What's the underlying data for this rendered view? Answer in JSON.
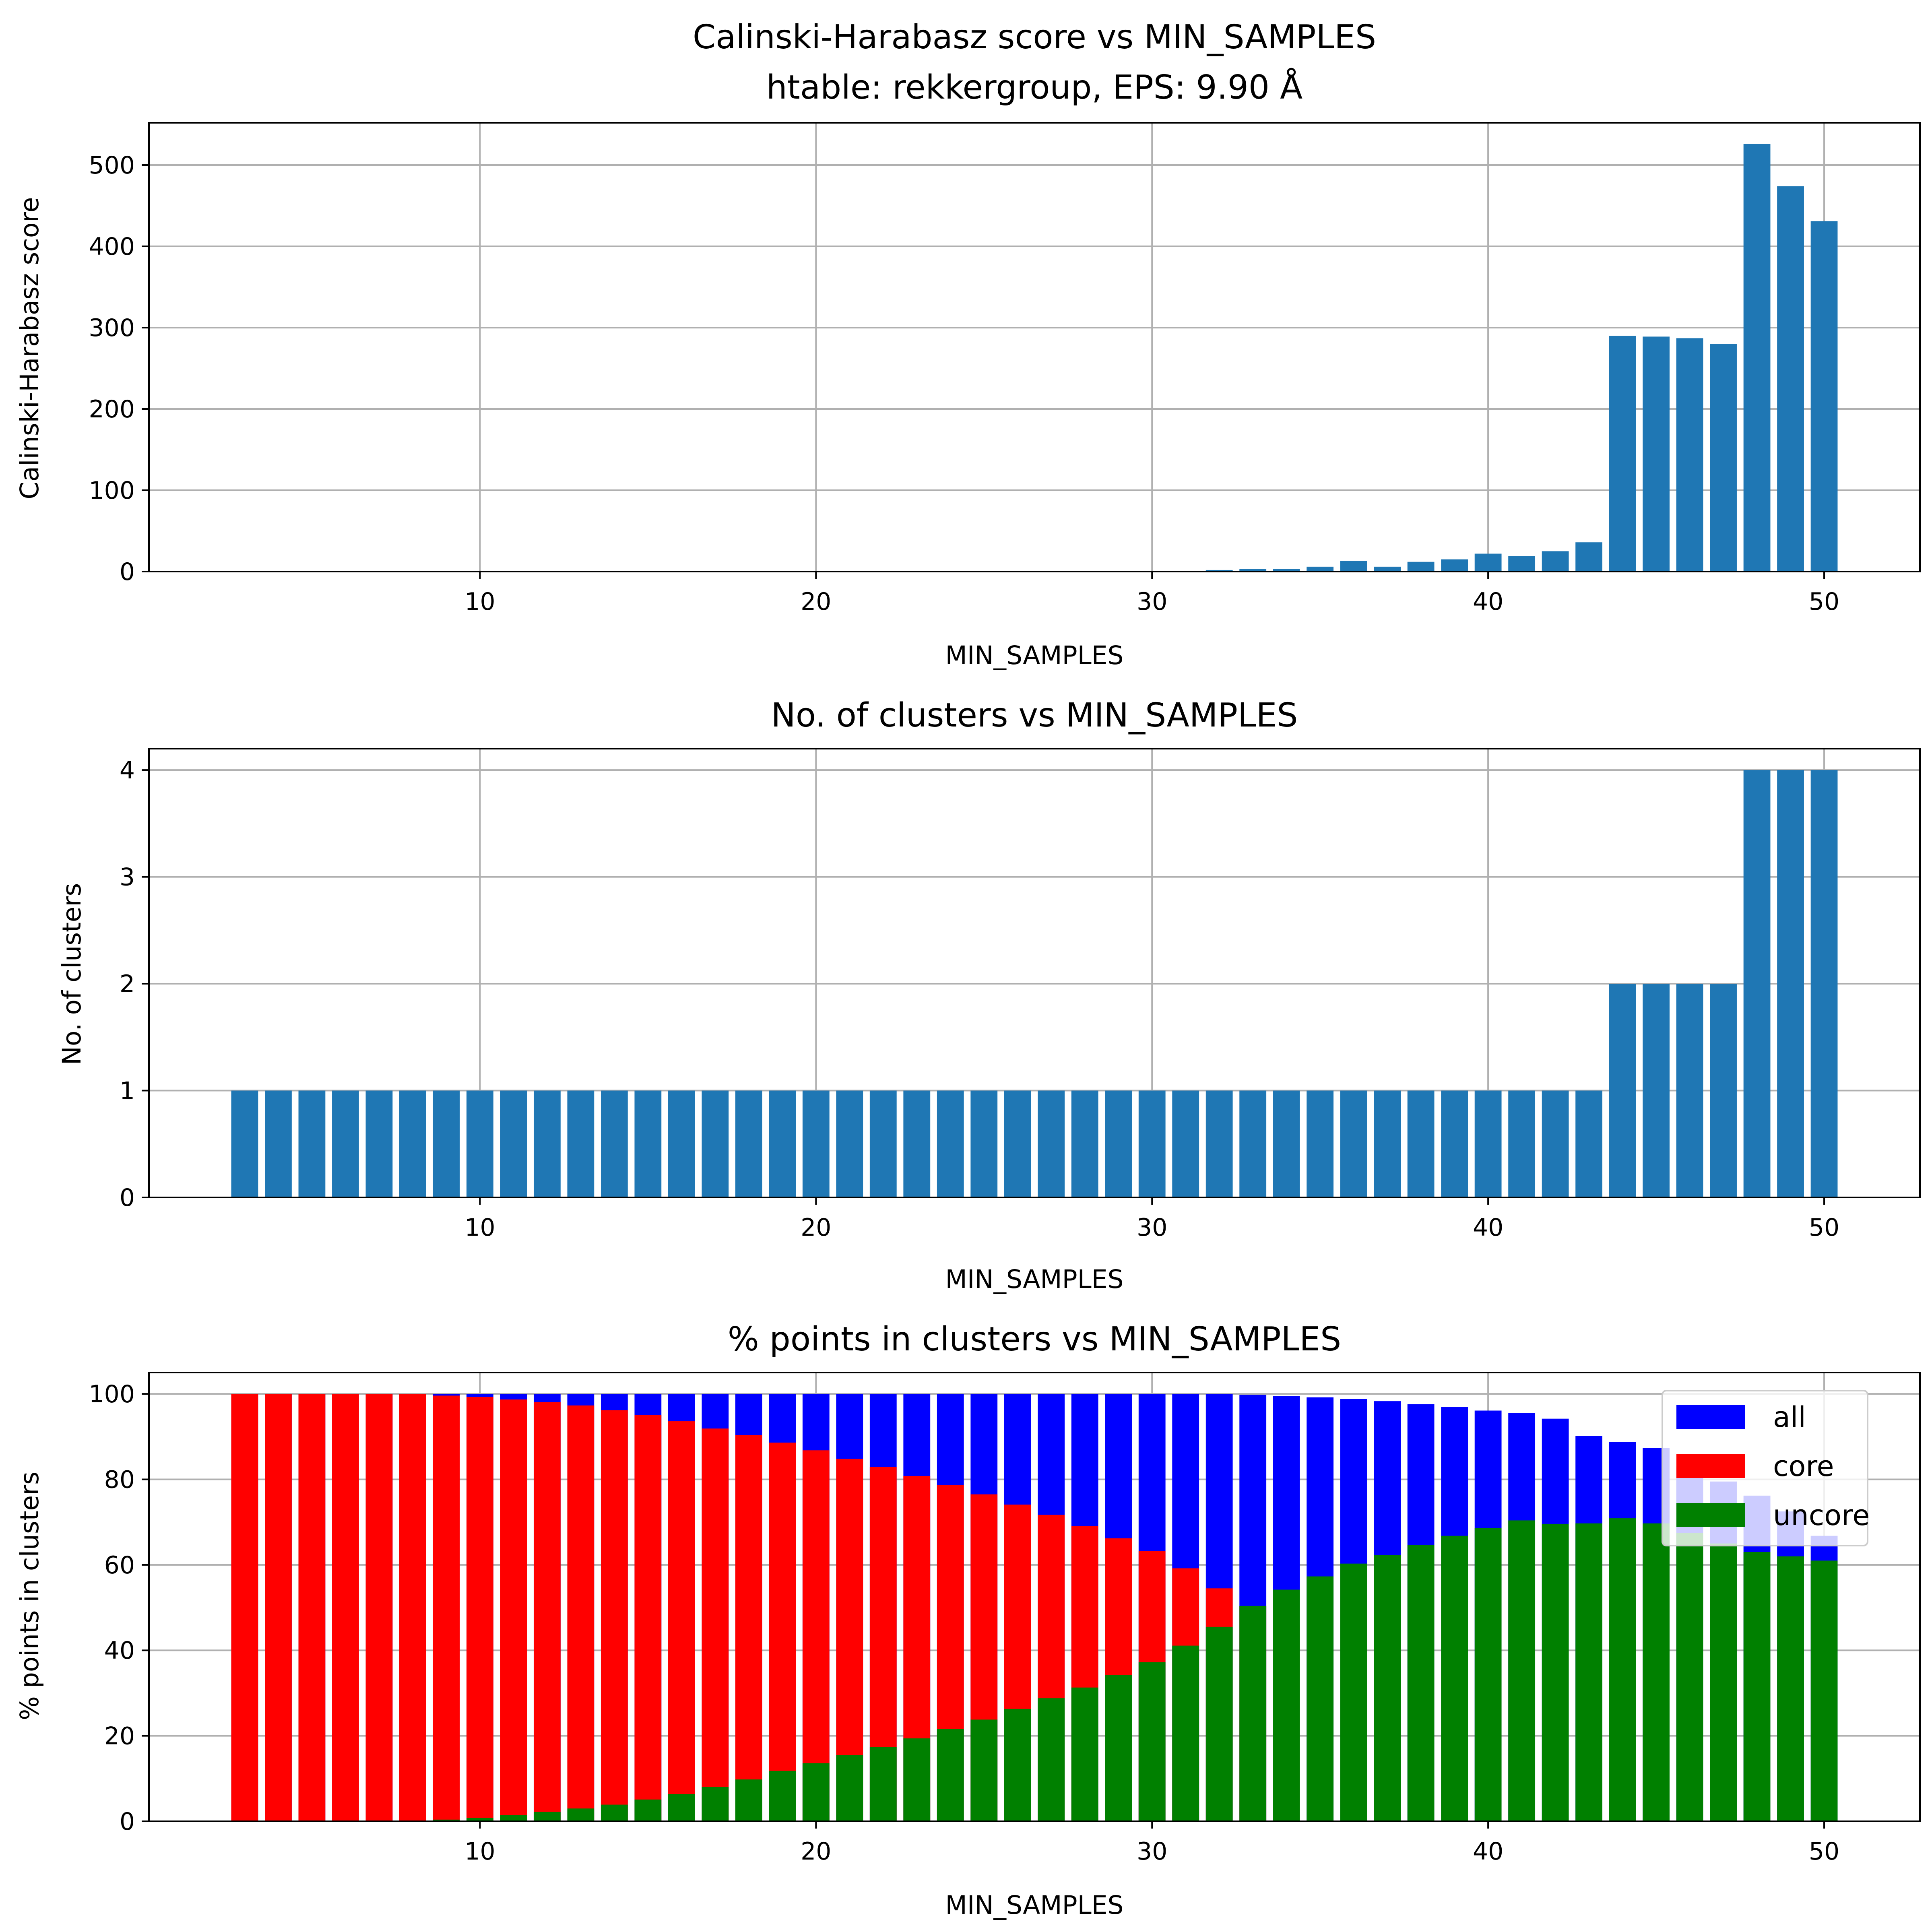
{
  "colors": {
    "bar": "#1f77b4",
    "all": "#0000ff",
    "core": "#ff0000",
    "uncore": "#008000",
    "grid": "#b0b0b0",
    "axis": "#000000"
  },
  "chart_data": [
    {
      "type": "bar",
      "title": "Calinski-Harabasz score vs MIN_SAMPLES",
      "subtitle": "htable: rekkergroup, EPS: 9.90 Å",
      "xlabel": "MIN_SAMPLES",
      "ylabel": "Calinski-Harabasz score",
      "xlim": [
        0.15,
        52.85
      ],
      "ylim": [
        0,
        552
      ],
      "xticks": [
        10,
        20,
        30,
        40,
        50
      ],
      "yticks": [
        0,
        100,
        200,
        300,
        400,
        500
      ],
      "grid": true,
      "x": [
        3,
        4,
        5,
        6,
        7,
        8,
        9,
        10,
        11,
        12,
        13,
        14,
        15,
        16,
        17,
        18,
        19,
        20,
        21,
        22,
        23,
        24,
        25,
        26,
        27,
        28,
        29,
        30,
        31,
        32,
        33,
        34,
        35,
        36,
        37,
        38,
        39,
        40,
        41,
        42,
        43,
        44,
        45,
        46,
        47,
        48,
        49,
        50
      ],
      "values": [
        0,
        0,
        0,
        0,
        0,
        0,
        0,
        0,
        0,
        0,
        0,
        0,
        0,
        0,
        0,
        0,
        0,
        0,
        0,
        0,
        0,
        0,
        0,
        0,
        0,
        0,
        0,
        0,
        0,
        2,
        3,
        3,
        6,
        13,
        6,
        12,
        15,
        22,
        19,
        25,
        36,
        290,
        289,
        287,
        280,
        526,
        474,
        431
      ]
    },
    {
      "type": "bar",
      "title": "No. of clusters vs MIN_SAMPLES",
      "xlabel": "MIN_SAMPLES",
      "ylabel": "No. of clusters",
      "xlim": [
        0.15,
        52.85
      ],
      "ylim": [
        0,
        4.2
      ],
      "xticks": [
        10,
        20,
        30,
        40,
        50
      ],
      "yticks": [
        0,
        1,
        2,
        3,
        4
      ],
      "grid": true,
      "x": [
        3,
        4,
        5,
        6,
        7,
        8,
        9,
        10,
        11,
        12,
        13,
        14,
        15,
        16,
        17,
        18,
        19,
        20,
        21,
        22,
        23,
        24,
        25,
        26,
        27,
        28,
        29,
        30,
        31,
        32,
        33,
        34,
        35,
        36,
        37,
        38,
        39,
        40,
        41,
        42,
        43,
        44,
        45,
        46,
        47,
        48,
        49,
        50
      ],
      "values": [
        1,
        1,
        1,
        1,
        1,
        1,
        1,
        1,
        1,
        1,
        1,
        1,
        1,
        1,
        1,
        1,
        1,
        1,
        1,
        1,
        1,
        1,
        1,
        1,
        1,
        1,
        1,
        1,
        1,
        1,
        1,
        1,
        1,
        1,
        1,
        1,
        1,
        1,
        1,
        1,
        1,
        2,
        2,
        2,
        2,
        4,
        4,
        4
      ]
    },
    {
      "type": "bar",
      "title": "%  points in clusters vs MIN_SAMPLES",
      "xlabel": "MIN_SAMPLES",
      "ylabel": "%  points in clusters",
      "xlim": [
        0.15,
        52.85
      ],
      "ylim": [
        0,
        105
      ],
      "xticks": [
        10,
        20,
        30,
        40,
        50
      ],
      "yticks": [
        0,
        20,
        40,
        60,
        80,
        100
      ],
      "grid": true,
      "legend": "top-right",
      "x": [
        3,
        4,
        5,
        6,
        7,
        8,
        9,
        10,
        11,
        12,
        13,
        14,
        15,
        16,
        17,
        18,
        19,
        20,
        21,
        22,
        23,
        24,
        25,
        26,
        27,
        28,
        29,
        30,
        31,
        32,
        33,
        34,
        35,
        36,
        37,
        38,
        39,
        40,
        41,
        42,
        43,
        44,
        45,
        46,
        47,
        48,
        49,
        50
      ],
      "series": [
        {
          "name": "all",
          "values": [
            100,
            100,
            100,
            100,
            100,
            100,
            100,
            100,
            100,
            100,
            100,
            100,
            100,
            100,
            100,
            100,
            100,
            100,
            100,
            100,
            100,
            100,
            100,
            100,
            100,
            100,
            100,
            100,
            100,
            100,
            99.8,
            99.5,
            99.2,
            98.8,
            98.3,
            97.6,
            96.9,
            96.1,
            95.5,
            94.2,
            90.2,
            88.8,
            87.3,
            83,
            79.5,
            76.2,
            72.5,
            66.8
          ]
        },
        {
          "name": "core",
          "values": [
            100,
            100,
            100,
            100,
            100,
            100,
            99.6,
            99.3,
            98.7,
            98.1,
            97.3,
            96.2,
            95.1,
            93.6,
            91.9,
            90.4,
            88.6,
            86.8,
            84.8,
            82.9,
            80.8,
            78.7,
            76.5,
            74.1,
            71.7,
            69.1,
            66.2,
            63.2,
            59.2,
            54.5,
            50.3,
            46.1,
            0,
            0,
            0,
            0,
            0,
            0,
            0,
            0,
            0,
            0,
            0,
            0,
            0,
            0,
            0,
            0
          ]
        },
        {
          "name": "uncore",
          "values": [
            0,
            0,
            0,
            0,
            0,
            0,
            0.4,
            0.8,
            1.5,
            2.2,
            3,
            3.9,
            5.1,
            6.4,
            8.1,
            9.8,
            11.8,
            13.6,
            15.5,
            17.4,
            19.4,
            21.6,
            23.8,
            26.3,
            28.8,
            31.3,
            34.2,
            37.2,
            41.1,
            45.5,
            50.4,
            54.2,
            57.3,
            60.3,
            62.3,
            64.6,
            66.8,
            68.6,
            70.4,
            69.6,
            69.7,
            70.9,
            69.7,
            67.5,
            65,
            63,
            62,
            61
          ]
        }
      ]
    }
  ]
}
